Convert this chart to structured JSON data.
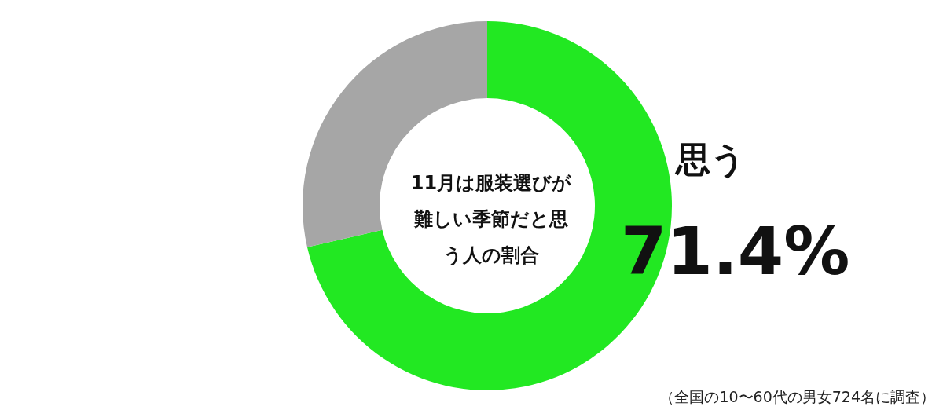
{
  "chart_data": {
    "type": "donut",
    "title": "11月は服装選びが難しい季節だと思う人の割合",
    "categories": [
      "思う",
      null
    ],
    "values": [
      71.4,
      28.6
    ],
    "colors": [
      "#22e822",
      "#a6a6a6"
    ],
    "value_labels": [
      "71.4%",
      null
    ],
    "legend": false,
    "annotations": [
      "（全国の10〜60代の男女724名に調査）"
    ]
  }
}
